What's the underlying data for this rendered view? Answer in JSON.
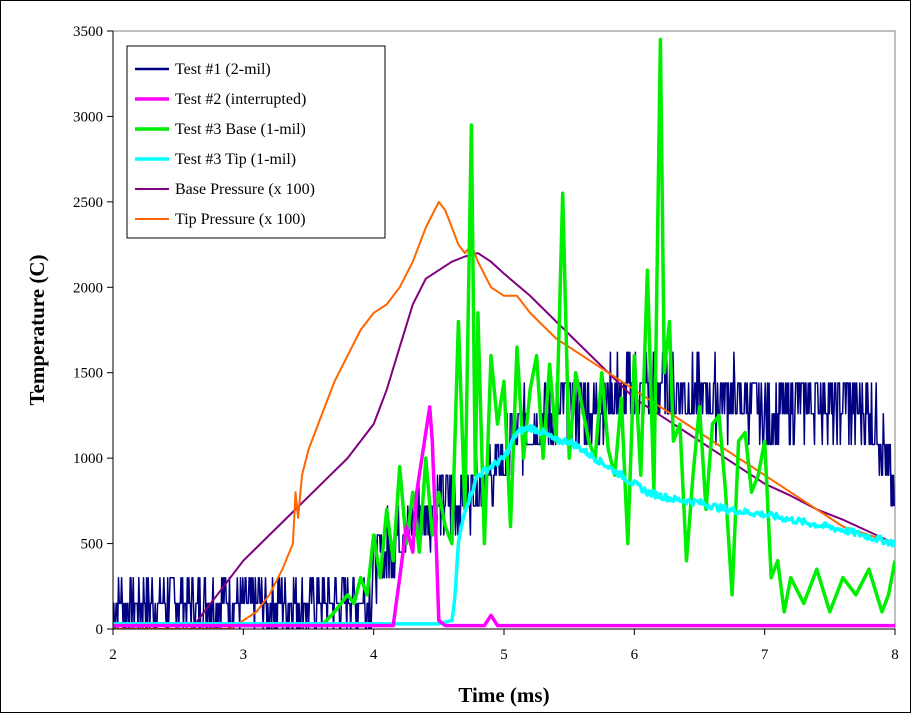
{
  "chart_data": {
    "type": "line",
    "title": "",
    "xlabel": "Time (ms)",
    "ylabel": "Temperature (C)",
    "xlim": [
      2,
      8
    ],
    "ylim": [
      0,
      3500
    ],
    "xticks": [
      2,
      3,
      4,
      5,
      6,
      7,
      8
    ],
    "yticks": [
      0,
      500,
      1000,
      1500,
      2000,
      2500,
      3000,
      3500
    ],
    "grid": false,
    "legend_position": "top-left",
    "series": [
      {
        "name": "Test #1 (2-mil)",
        "color": "#000080",
        "noisy": true,
        "x": [
          2.0,
          2.4,
          2.8,
          3.2,
          3.5,
          3.8,
          3.98,
          4.0,
          4.1,
          4.2,
          4.3,
          4.5,
          4.7,
          4.9,
          5.0,
          5.1,
          5.3,
          5.5,
          5.7,
          5.8,
          6.0,
          6.2,
          6.5,
          6.7,
          6.9,
          7.0,
          7.2,
          7.4,
          7.6,
          7.8,
          7.9,
          8.0
        ],
        "y": [
          150,
          150,
          160,
          150,
          150,
          170,
          200,
          400,
          450,
          550,
          650,
          720,
          800,
          900,
          1000,
          1150,
          1250,
          1300,
          1300,
          1350,
          1400,
          1450,
          1350,
          1350,
          1350,
          1250,
          1300,
          1350,
          1300,
          1280,
          1100,
          700
        ]
      },
      {
        "name": "Test #2 (interrupted)",
        "color": "#ff00ff",
        "noisy": false,
        "x": [
          2.0,
          4.0,
          4.15,
          4.2,
          4.25,
          4.3,
          4.33,
          4.37,
          4.4,
          4.43,
          4.45,
          4.48,
          4.5,
          4.55,
          4.6,
          4.7,
          4.85,
          4.9,
          4.95,
          5.0,
          5.5,
          6.0,
          6.5,
          7.0,
          7.5,
          8.0
        ],
        "y": [
          20,
          20,
          20,
          300,
          600,
          450,
          800,
          1000,
          1150,
          1300,
          1100,
          500,
          50,
          20,
          20,
          20,
          20,
          80,
          20,
          20,
          20,
          20,
          20,
          20,
          20,
          20
        ]
      },
      {
        "name": "Test #3 Base (1-mil)",
        "color": "#00ee00",
        "noisy": false,
        "x": [
          2.0,
          3.6,
          3.7,
          3.8,
          3.85,
          3.9,
          3.95,
          4.0,
          4.05,
          4.1,
          4.15,
          4.2,
          4.25,
          4.3,
          4.35,
          4.4,
          4.45,
          4.5,
          4.55,
          4.6,
          4.65,
          4.7,
          4.75,
          4.78,
          4.8,
          4.85,
          4.9,
          4.95,
          5.0,
          5.05,
          5.1,
          5.15,
          5.2,
          5.25,
          5.3,
          5.35,
          5.4,
          5.45,
          5.5,
          5.55,
          5.6,
          5.65,
          5.7,
          5.75,
          5.8,
          5.85,
          5.9,
          5.95,
          6.0,
          6.05,
          6.1,
          6.15,
          6.2,
          6.23,
          6.27,
          6.3,
          6.35,
          6.4,
          6.45,
          6.5,
          6.55,
          6.6,
          6.65,
          6.7,
          6.75,
          6.8,
          6.85,
          6.9,
          6.95,
          7.0,
          7.05,
          7.1,
          7.15,
          7.2,
          7.3,
          7.4,
          7.5,
          7.6,
          7.7,
          7.8,
          7.9,
          7.95,
          8.0
        ],
        "y": [
          20,
          20,
          100,
          200,
          150,
          300,
          200,
          550,
          300,
          700,
          400,
          950,
          500,
          800,
          450,
          1000,
          550,
          800,
          600,
          500,
          1800,
          700,
          2950,
          900,
          1850,
          500,
          1600,
          1200,
          1450,
          600,
          1650,
          1000,
          1400,
          1600,
          1000,
          1550,
          1100,
          2550,
          1000,
          1500,
          1300,
          1100,
          1000,
          1500,
          1050,
          900,
          1350,
          500,
          1600,
          900,
          2100,
          800,
          3450,
          1500,
          1800,
          1100,
          1200,
          400,
          900,
          1300,
          700,
          1200,
          1250,
          800,
          200,
          1100,
          1150,
          800,
          900,
          1100,
          300,
          400,
          100,
          300,
          150,
          350,
          100,
          300,
          200,
          350,
          100,
          200,
          400
        ]
      },
      {
        "name": "Test #3 Tip (1-mil)",
        "color": "#00ffff",
        "noisy": true,
        "x": [
          2.0,
          2.5,
          3.0,
          3.5,
          4.0,
          4.5,
          4.6,
          4.62,
          4.65,
          4.7,
          4.8,
          4.9,
          5.0,
          5.1,
          5.2,
          5.3,
          5.4,
          5.5,
          5.6,
          5.7,
          5.8,
          5.9,
          6.0,
          6.1,
          6.2,
          6.3,
          6.4,
          6.5,
          6.6,
          6.7,
          6.8,
          6.9,
          7.0,
          7.2,
          7.4,
          7.6,
          7.8,
          8.0
        ],
        "y": [
          30,
          30,
          30,
          30,
          30,
          30,
          50,
          150,
          500,
          700,
          900,
          950,
          1000,
          1150,
          1180,
          1150,
          1100,
          1100,
          1050,
          1000,
          950,
          900,
          850,
          800,
          780,
          760,
          750,
          740,
          720,
          700,
          690,
          680,
          670,
          640,
          610,
          580,
          540,
          500
        ]
      },
      {
        "name": "Base Pressure (x 100)",
        "color": "#800080",
        "noisy": false,
        "x": [
          2.0,
          2.6,
          2.7,
          2.8,
          2.9,
          3.0,
          3.2,
          3.4,
          3.6,
          3.8,
          4.0,
          4.1,
          4.2,
          4.3,
          4.4,
          4.5,
          4.6,
          4.7,
          4.8,
          4.9,
          5.0,
          5.2,
          5.4,
          5.6,
          5.8,
          6.0,
          6.2,
          6.4,
          6.6,
          6.8,
          7.0,
          7.2,
          7.4,
          7.6,
          7.8,
          8.0
        ],
        "y": [
          0,
          0,
          100,
          200,
          300,
          400,
          550,
          700,
          850,
          1000,
          1200,
          1400,
          1650,
          1900,
          2050,
          2100,
          2150,
          2180,
          2200,
          2150,
          2080,
          1950,
          1800,
          1650,
          1500,
          1350,
          1250,
          1150,
          1050,
          950,
          850,
          780,
          700,
          640,
          570,
          500
        ]
      },
      {
        "name": "Tip Pressure (x 100)",
        "color": "#ff6600",
        "noisy": false,
        "x": [
          2.0,
          2.9,
          3.0,
          3.1,
          3.2,
          3.3,
          3.38,
          3.4,
          3.42,
          3.45,
          3.5,
          3.6,
          3.7,
          3.8,
          3.9,
          4.0,
          4.1,
          4.2,
          4.3,
          4.4,
          4.5,
          4.55,
          4.6,
          4.65,
          4.7,
          4.75,
          4.8,
          4.9,
          5.0,
          5.1,
          5.2,
          5.4,
          5.6,
          5.8,
          6.0,
          6.2,
          6.4,
          6.6,
          6.8,
          7.0,
          7.2,
          7.4,
          7.6,
          7.8,
          8.0
        ],
        "y": [
          0,
          0,
          50,
          100,
          200,
          350,
          500,
          800,
          650,
          900,
          1050,
          1250,
          1450,
          1600,
          1750,
          1850,
          1900,
          2000,
          2150,
          2350,
          2500,
          2450,
          2350,
          2250,
          2200,
          2250,
          2150,
          2000,
          1950,
          1950,
          1850,
          1700,
          1600,
          1500,
          1400,
          1300,
          1200,
          1100,
          1000,
          900,
          800,
          700,
          600,
          550,
          500
        ]
      }
    ]
  }
}
